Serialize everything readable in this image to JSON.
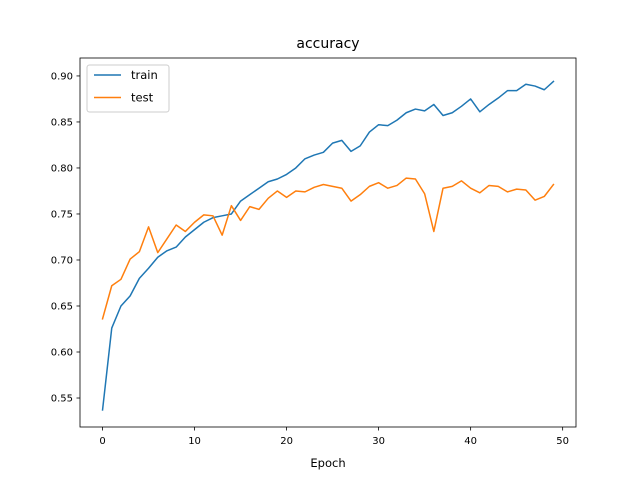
{
  "chart_data": {
    "type": "line",
    "title": "accuracy",
    "xlabel": "Epoch",
    "ylabel": "",
    "xlim": [
      -2.45,
      51.45
    ],
    "ylim": [
      0.5185,
      0.9195
    ],
    "xticks": [
      0,
      10,
      20,
      30,
      40,
      50
    ],
    "yticks": [
      0.55,
      0.6,
      0.65,
      0.7,
      0.75,
      0.8,
      0.85,
      0.9
    ],
    "ytick_labels": [
      "0.55",
      "0.60",
      "0.65",
      "0.70",
      "0.75",
      "0.80",
      "0.85",
      "0.90"
    ],
    "grid": false,
    "legend": "top-left",
    "x": [
      0,
      1,
      2,
      3,
      4,
      5,
      6,
      7,
      8,
      9,
      10,
      11,
      12,
      13,
      14,
      15,
      16,
      17,
      18,
      19,
      20,
      21,
      22,
      23,
      24,
      25,
      26,
      27,
      28,
      29,
      30,
      31,
      32,
      33,
      34,
      35,
      36,
      37,
      38,
      39,
      40,
      41,
      42,
      43,
      44,
      45,
      46,
      47,
      48,
      49
    ],
    "series": [
      {
        "name": "train",
        "color": "#1f77b4",
        "values": [
          0.537,
          0.626,
          0.65,
          0.661,
          0.68,
          0.691,
          0.703,
          0.71,
          0.714,
          0.725,
          0.733,
          0.741,
          0.746,
          0.748,
          0.75,
          0.764,
          0.771,
          0.778,
          0.785,
          0.788,
          0.793,
          0.8,
          0.81,
          0.814,
          0.817,
          0.827,
          0.83,
          0.818,
          0.824,
          0.839,
          0.847,
          0.846,
          0.852,
          0.86,
          0.864,
          0.862,
          0.869,
          0.857,
          0.86,
          0.867,
          0.875,
          0.861,
          0.869,
          0.876,
          0.884,
          0.884,
          0.891,
          0.889,
          0.885,
          0.894
        ]
      },
      {
        "name": "test",
        "color": "#ff7f0e",
        "values": [
          0.636,
          0.672,
          0.679,
          0.701,
          0.709,
          0.736,
          0.708,
          0.723,
          0.738,
          0.731,
          0.741,
          0.749,
          0.748,
          0.727,
          0.759,
          0.743,
          0.758,
          0.755,
          0.767,
          0.775,
          0.768,
          0.775,
          0.774,
          0.779,
          0.782,
          0.78,
          0.778,
          0.764,
          0.771,
          0.78,
          0.784,
          0.778,
          0.781,
          0.789,
          0.788,
          0.772,
          0.731,
          0.778,
          0.78,
          0.786,
          0.778,
          0.773,
          0.781,
          0.78,
          0.774,
          0.777,
          0.776,
          0.765,
          0.769,
          0.782
        ]
      }
    ]
  }
}
